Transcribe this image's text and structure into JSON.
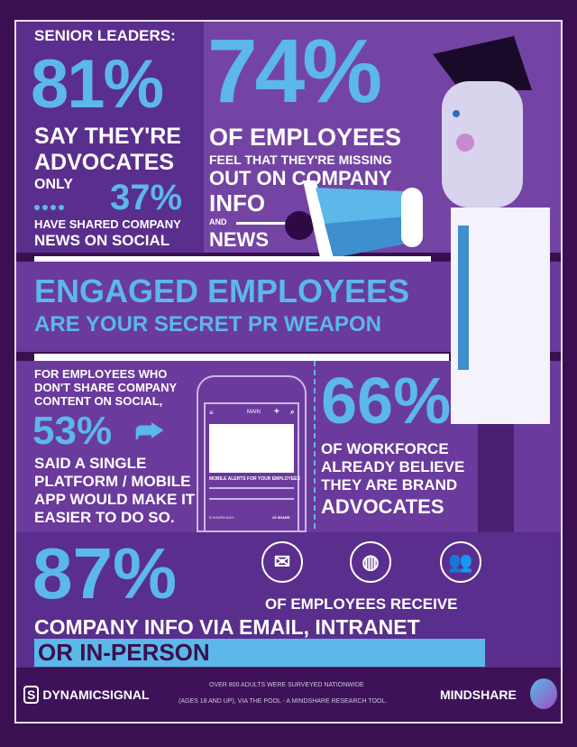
{
  "senior": {
    "heading": "SENIOR LEADERS:",
    "pct": "81%",
    "line1": "SAY THEY'RE",
    "line2": "ADVOCATES",
    "only": "ONLY",
    "pct2": "37%",
    "line3": "HAVE SHARED COMPANY",
    "line4": "NEWS ON SOCIAL"
  },
  "employees": {
    "pct": "74%",
    "line1": "OF EMPLOYEES",
    "line2": "FEEL THAT THEY'RE MISSING",
    "line3": "OUT ON COMPANY",
    "line4": "INFO",
    "and": "AND",
    "line5": "NEWS"
  },
  "banner": {
    "line1": "ENGAGED EMPLOYEES",
    "line2": "ARE YOUR SECRET PR WEAPON"
  },
  "platform": {
    "line1": "FOR EMPLOYEES WHO",
    "line2": "DON'T SHARE COMPANY",
    "line3": "CONTENT ON SOCIAL,",
    "pct": "53%",
    "line4": "SAID A SINGLE",
    "line5": "PLATFORM / MOBILE",
    "line6": "APP WOULD MAKE IT",
    "line7": "EASIER TO DO SO."
  },
  "phone": {
    "nav_title": "MAIN",
    "headline": "MOBILE ALERTS FOR YOUR EMPLOYEES",
    "time": "5 HOURS AGO",
    "share_count": "25",
    "share_label": "SHARE"
  },
  "workforce": {
    "pct": "66%",
    "line1": "OF WORKFORCE",
    "line2": "ALREADY BELIEVE",
    "line3": "THEY ARE BRAND",
    "line4": "ADVOCATES"
  },
  "channels": {
    "pct": "87%",
    "line1": "OF EMPLOYEES RECEIVE",
    "line2": "COMPANY INFO VIA EMAIL, INTRANET",
    "line3": "OR IN-PERSON",
    "icons": [
      "email-icon",
      "globe-icon",
      "people-icon"
    ]
  },
  "footer": {
    "brand_left": "DYNAMICSIGNAL",
    "note1": "OVER 800 ADULTS WERE SURVEYED NATIONWIDE",
    "note2": "(AGES 18 AND UP), VIA THE POOL - A MINDSHARE RESEARCH TOOL.",
    "brand_right": "MINDSHARE"
  },
  "colors": {
    "background": "#3a1050",
    "accent": "#5bb8e8",
    "panel": "#6a3a9c"
  }
}
